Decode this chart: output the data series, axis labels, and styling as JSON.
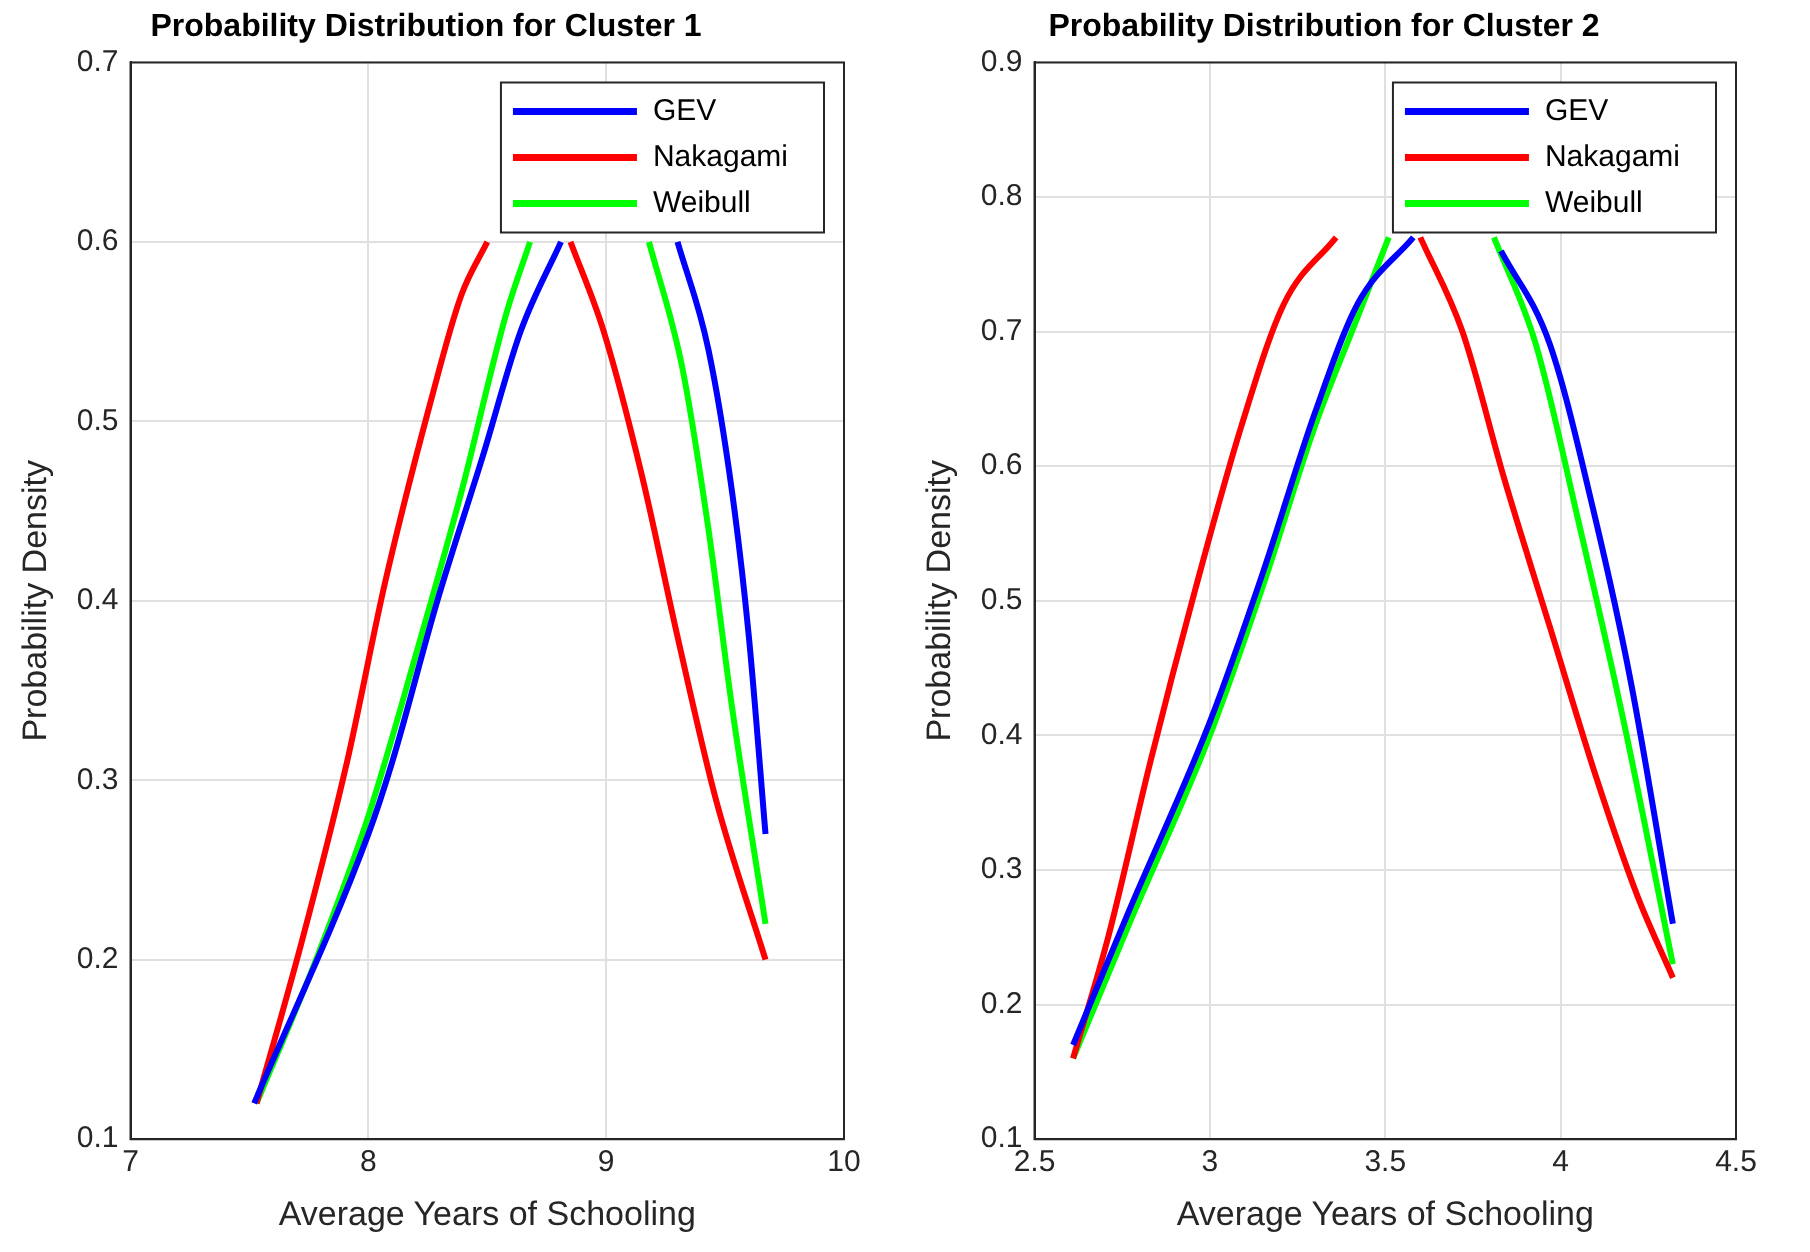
{
  "chart_data": [
    {
      "type": "line",
      "title": "Probability Distribution for Cluster 1",
      "xlabel": "Average Years of Schooling",
      "ylabel": "Probability Density",
      "xlim": [
        7,
        10
      ],
      "xticks": [
        7,
        8,
        9,
        10
      ],
      "ylim": [
        0.1,
        0.7
      ],
      "yticks": [
        0.1,
        0.2,
        0.3,
        0.4,
        0.5,
        0.6,
        0.7
      ],
      "grid": true,
      "legend": "top right",
      "series": [
        {
          "name": "GEV",
          "color": "#0000ff",
          "x": [
            7.52,
            8.0,
            8.1,
            8.29,
            8.48,
            8.64,
            8.81,
            9.05,
            9.3,
            9.43,
            9.53,
            9.6,
            9.67
          ],
          "values": [
            0.12,
            0.27,
            0.31,
            0.4,
            0.48,
            0.55,
            0.6,
            null,
            0.6,
            0.54,
            0.46,
            0.38,
            0.27
          ]
        },
        {
          "name": "Nakagami",
          "color": "#ff0000",
          "x": [
            7.53,
            7.72,
            7.91,
            8.07,
            8.26,
            8.39,
            8.5,
            8.67,
            8.85,
            8.99,
            9.15,
            9.3,
            9.46,
            9.67
          ],
          "values": [
            0.12,
            0.21,
            0.31,
            0.41,
            0.51,
            0.57,
            0.6,
            null,
            0.6,
            0.55,
            0.47,
            0.38,
            0.29,
            0.2
          ]
        },
        {
          "name": "Weibull",
          "color": "#00ff00",
          "x": [
            7.53,
            7.78,
            8.0,
            8.2,
            8.39,
            8.58,
            8.68,
            8.93,
            9.18,
            9.32,
            9.43,
            9.53,
            9.67
          ],
          "values": [
            0.12,
            0.2,
            0.28,
            0.37,
            0.46,
            0.56,
            0.6,
            null,
            0.6,
            0.53,
            0.44,
            0.34,
            0.22
          ]
        }
      ]
    },
    {
      "type": "line",
      "title": "Probability Distribution for Cluster 2",
      "xlabel": "Average Years of Schooling",
      "ylabel": "Probability Density",
      "xlim": [
        2.5,
        4.5
      ],
      "xticks": [
        2.5,
        3,
        3.5,
        4,
        4.5
      ],
      "ylim": [
        0.1,
        0.9
      ],
      "yticks": [
        0.1,
        0.2,
        0.3,
        0.4,
        0.5,
        0.6,
        0.7,
        0.8,
        0.9
      ],
      "grid": true,
      "legend": "top right",
      "series": [
        {
          "name": "GEV",
          "color": "#0000ff",
          "x": [
            2.61,
            2.77,
            3.0,
            3.15,
            3.3,
            3.42,
            3.58,
            3.7,
            3.83,
            3.97,
            4.1,
            4.2,
            4.32
          ],
          "values": [
            0.17,
            0.27,
            0.41,
            0.52,
            0.64,
            0.72,
            0.77,
            null,
            0.76,
            0.69,
            0.56,
            0.44,
            0.26
          ]
        },
        {
          "name": "Nakagami",
          "color": "#ff0000",
          "x": [
            2.61,
            2.71,
            2.83,
            2.96,
            3.09,
            3.21,
            3.36,
            3.48,
            3.6,
            3.72,
            3.84,
            3.97,
            4.1,
            4.22,
            4.32
          ],
          "values": [
            0.16,
            0.25,
            0.38,
            0.51,
            0.63,
            0.72,
            0.77,
            null,
            0.77,
            0.7,
            0.59,
            0.48,
            0.37,
            0.28,
            0.22
          ]
        },
        {
          "name": "Weibull",
          "color": "#00ff00",
          "x": [
            2.61,
            2.77,
            3.0,
            3.15,
            3.3,
            3.42,
            3.51,
            3.66,
            3.81,
            3.93,
            4.05,
            4.18,
            4.32
          ],
          "values": [
            0.16,
            0.26,
            0.4,
            0.51,
            0.63,
            0.71,
            0.77,
            null,
            0.77,
            0.69,
            0.56,
            0.41,
            0.23
          ]
        }
      ]
    }
  ]
}
